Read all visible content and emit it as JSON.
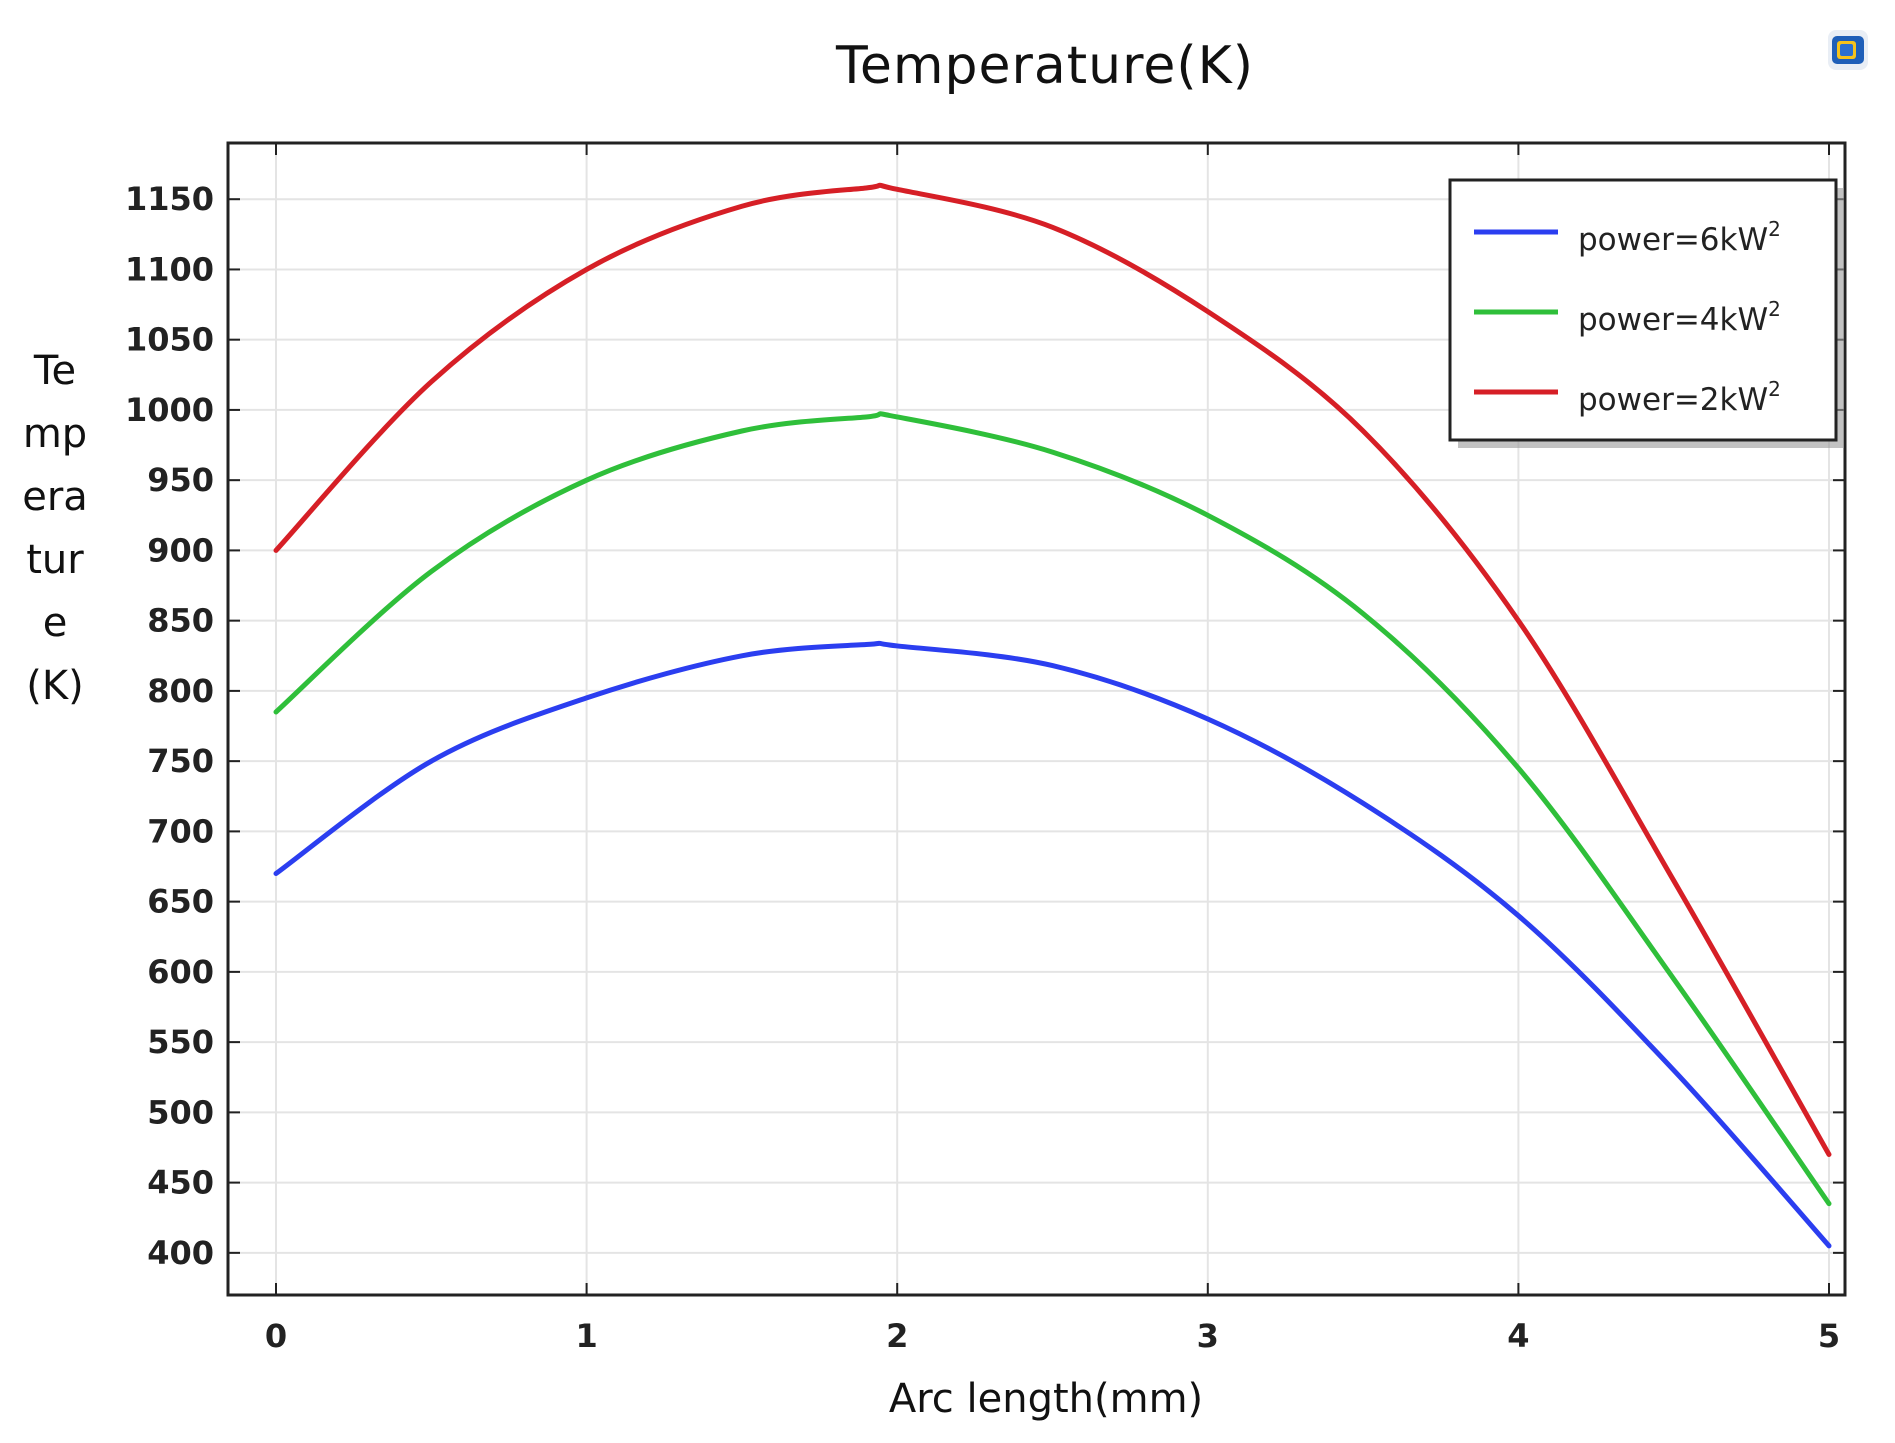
{
  "chart_data": {
    "type": "line",
    "title": "Temperature(K)",
    "xlabel": "Arc length(mm)",
    "ylabel": "Temperature(K)",
    "xlim": [
      0,
      5
    ],
    "ylim": [
      370,
      1190
    ],
    "x_ticks": [
      "0",
      "1",
      "2",
      "3",
      "4",
      "5"
    ],
    "y_ticks": [
      "400",
      "450",
      "500",
      "550",
      "600",
      "650",
      "700",
      "750",
      "800",
      "850",
      "900",
      "950",
      "1000",
      "1050",
      "1100",
      "1150"
    ],
    "grid": true,
    "legend_position": "top-right",
    "x": [
      0,
      0.5,
      1,
      1.5,
      1.9,
      2,
      2.5,
      3,
      3.5,
      4,
      4.5,
      5
    ],
    "series": [
      {
        "name": "power=6kW",
        "name_sup": "2",
        "color": "#2b3ef0",
        "values": [
          670,
          750,
          795,
          825,
          833,
          832,
          818,
          780,
          720,
          640,
          530,
          405
        ]
      },
      {
        "name": "power=4kW",
        "name_sup": "2",
        "color": "#2fbf3a",
        "values": [
          785,
          885,
          950,
          985,
          995,
          995,
          970,
          925,
          855,
          745,
          595,
          435
        ]
      },
      {
        "name": "power=2kW",
        "name_sup": "2",
        "color": "#d61f26",
        "values": [
          900,
          1020,
          1100,
          1145,
          1158,
          1157,
          1130,
          1070,
          985,
          850,
          665,
          470
        ]
      }
    ]
  },
  "colors": {
    "axis": "#222222",
    "grid": "#e4e4e4",
    "background": "#ffffff"
  },
  "icons": {
    "app_icon": "comsol-app-icon"
  }
}
